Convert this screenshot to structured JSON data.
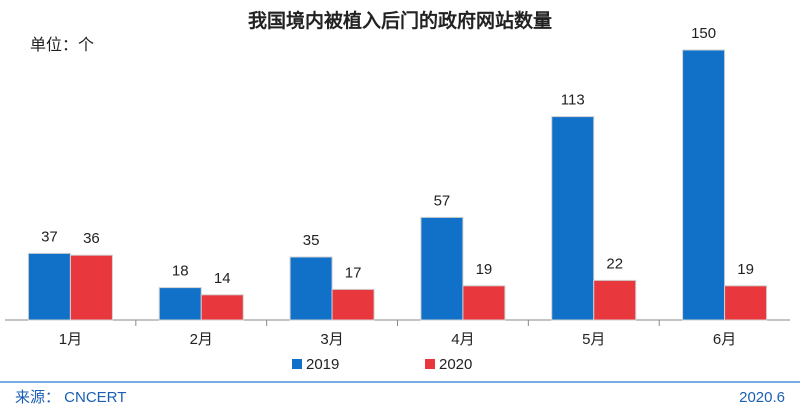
{
  "chart_data": {
    "type": "bar",
    "title": "我国境内被植入后门的政府网站数量",
    "unit_label": "单位：个",
    "categories": [
      "1月",
      "2月",
      "3月",
      "4月",
      "5月",
      "6月"
    ],
    "series": [
      {
        "name": "2019",
        "color": "#1170c8",
        "values": [
          37,
          18,
          35,
          57,
          113,
          150
        ]
      },
      {
        "name": "2020",
        "color": "#e8383d",
        "values": [
          36,
          14,
          17,
          19,
          22,
          19
        ]
      }
    ],
    "source": "来源： CNCERT",
    "date": "2020.6"
  }
}
